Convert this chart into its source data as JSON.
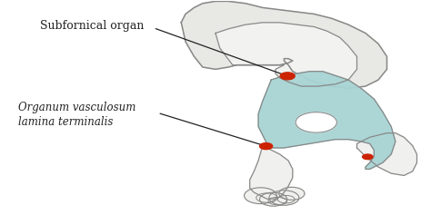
{
  "bg_color": "#ffffff",
  "brain_outline_color": "#888888",
  "teal_fill_color": "#a8d4d4",
  "red_dot_color": "#cc2200",
  "label_subfornical": "Subfornical organ",
  "label_organum_line1": "Organum vasculosum",
  "label_organum_line2": "lamina terminalis",
  "line_color": "#222222",
  "text_color": "#222222",
  "figwidth": 4.74,
  "figheight": 2.37
}
